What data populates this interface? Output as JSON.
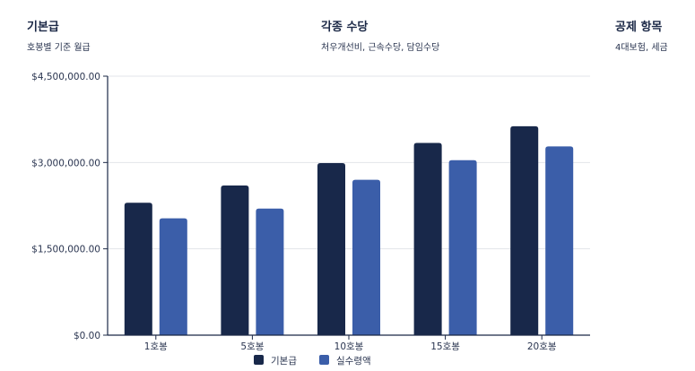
{
  "info": [
    {
      "title": "기본급",
      "subtitle": "호봉별 기준 월급"
    },
    {
      "title": "각종 수당",
      "subtitle": "처우개선비, 근속수당, 담임수당"
    },
    {
      "title": "공제 항목",
      "subtitle": "4대보험, 세금"
    }
  ],
  "colors": {
    "series1": "#18284a",
    "series2": "#3b5ea9",
    "axis": "#1b2846",
    "grid": "#e3e5ea"
  },
  "chart_data": {
    "type": "bar",
    "categories": [
      "1호봉",
      "5호봉",
      "10호봉",
      "15호봉",
      "20호봉"
    ],
    "series": [
      {
        "name": "기본급",
        "values": [
          2300000,
          2600000,
          2990000,
          3340000,
          3630000
        ]
      },
      {
        "name": "실수령액",
        "values": [
          2030000,
          2200000,
          2700000,
          3040000,
          3280000
        ]
      }
    ],
    "yticks": [
      "$0.00",
      "$1,500,000.00",
      "$3,000,000.00",
      "$4,500,000.00"
    ],
    "ylim": [
      0,
      4500000
    ],
    "grid": true,
    "legend": "bottom"
  }
}
